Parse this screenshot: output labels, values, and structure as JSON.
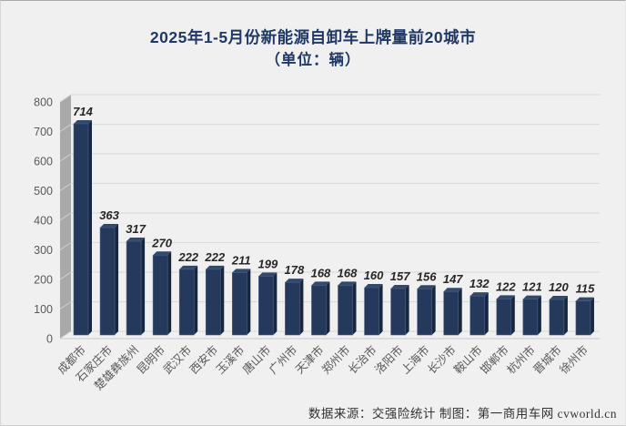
{
  "title": {
    "line1": "2025年1-5月份新能源自卸车上牌量前20城市",
    "line2": "（单位：辆）"
  },
  "footer": {
    "text": "数据来源：交强险统计 制图：第一商用车网 cvworld.cn"
  },
  "chart_data": {
    "type": "bar",
    "style": "3d-column",
    "title": "2025年1-5月份新能源自卸车上牌量前20城市",
    "subtitle": "（单位：辆）",
    "xlabel": "",
    "ylabel": "",
    "categories": [
      "成都市",
      "石家庄市",
      "楚雄彝族州",
      "昆明市",
      "武汉市",
      "西安市",
      "玉溪市",
      "唐山市",
      "广州市",
      "天津市",
      "郑州市",
      "长治市",
      "洛阳市",
      "上海市",
      "长沙市",
      "鞍山市",
      "邯郸市",
      "杭州市",
      "晋城市",
      "徐州市"
    ],
    "values": [
      714,
      363,
      317,
      270,
      222,
      222,
      211,
      199,
      178,
      168,
      168,
      160,
      157,
      156,
      147,
      132,
      122,
      121,
      120,
      115
    ],
    "ylim": [
      0,
      800
    ],
    "ytick_interval": 100,
    "yticks": [
      0,
      100,
      200,
      300,
      400,
      500,
      600,
      700,
      800
    ],
    "grid": true,
    "legend": "none",
    "data_labels": true,
    "colors": {
      "bar_front": "#24395b",
      "bar_side": "#16273f",
      "bar_top": "#33496b",
      "bar_edge_highlight": "#4d6385",
      "wall": "#a9a9a9",
      "wall_tick": "#d2d2d2",
      "gridline": "#dbdbdb",
      "floor_line": "#c9c9c9",
      "title": "#1f3864",
      "axis_label": "#595959",
      "data_label": "#262626",
      "background": "#f0f0f0"
    }
  }
}
